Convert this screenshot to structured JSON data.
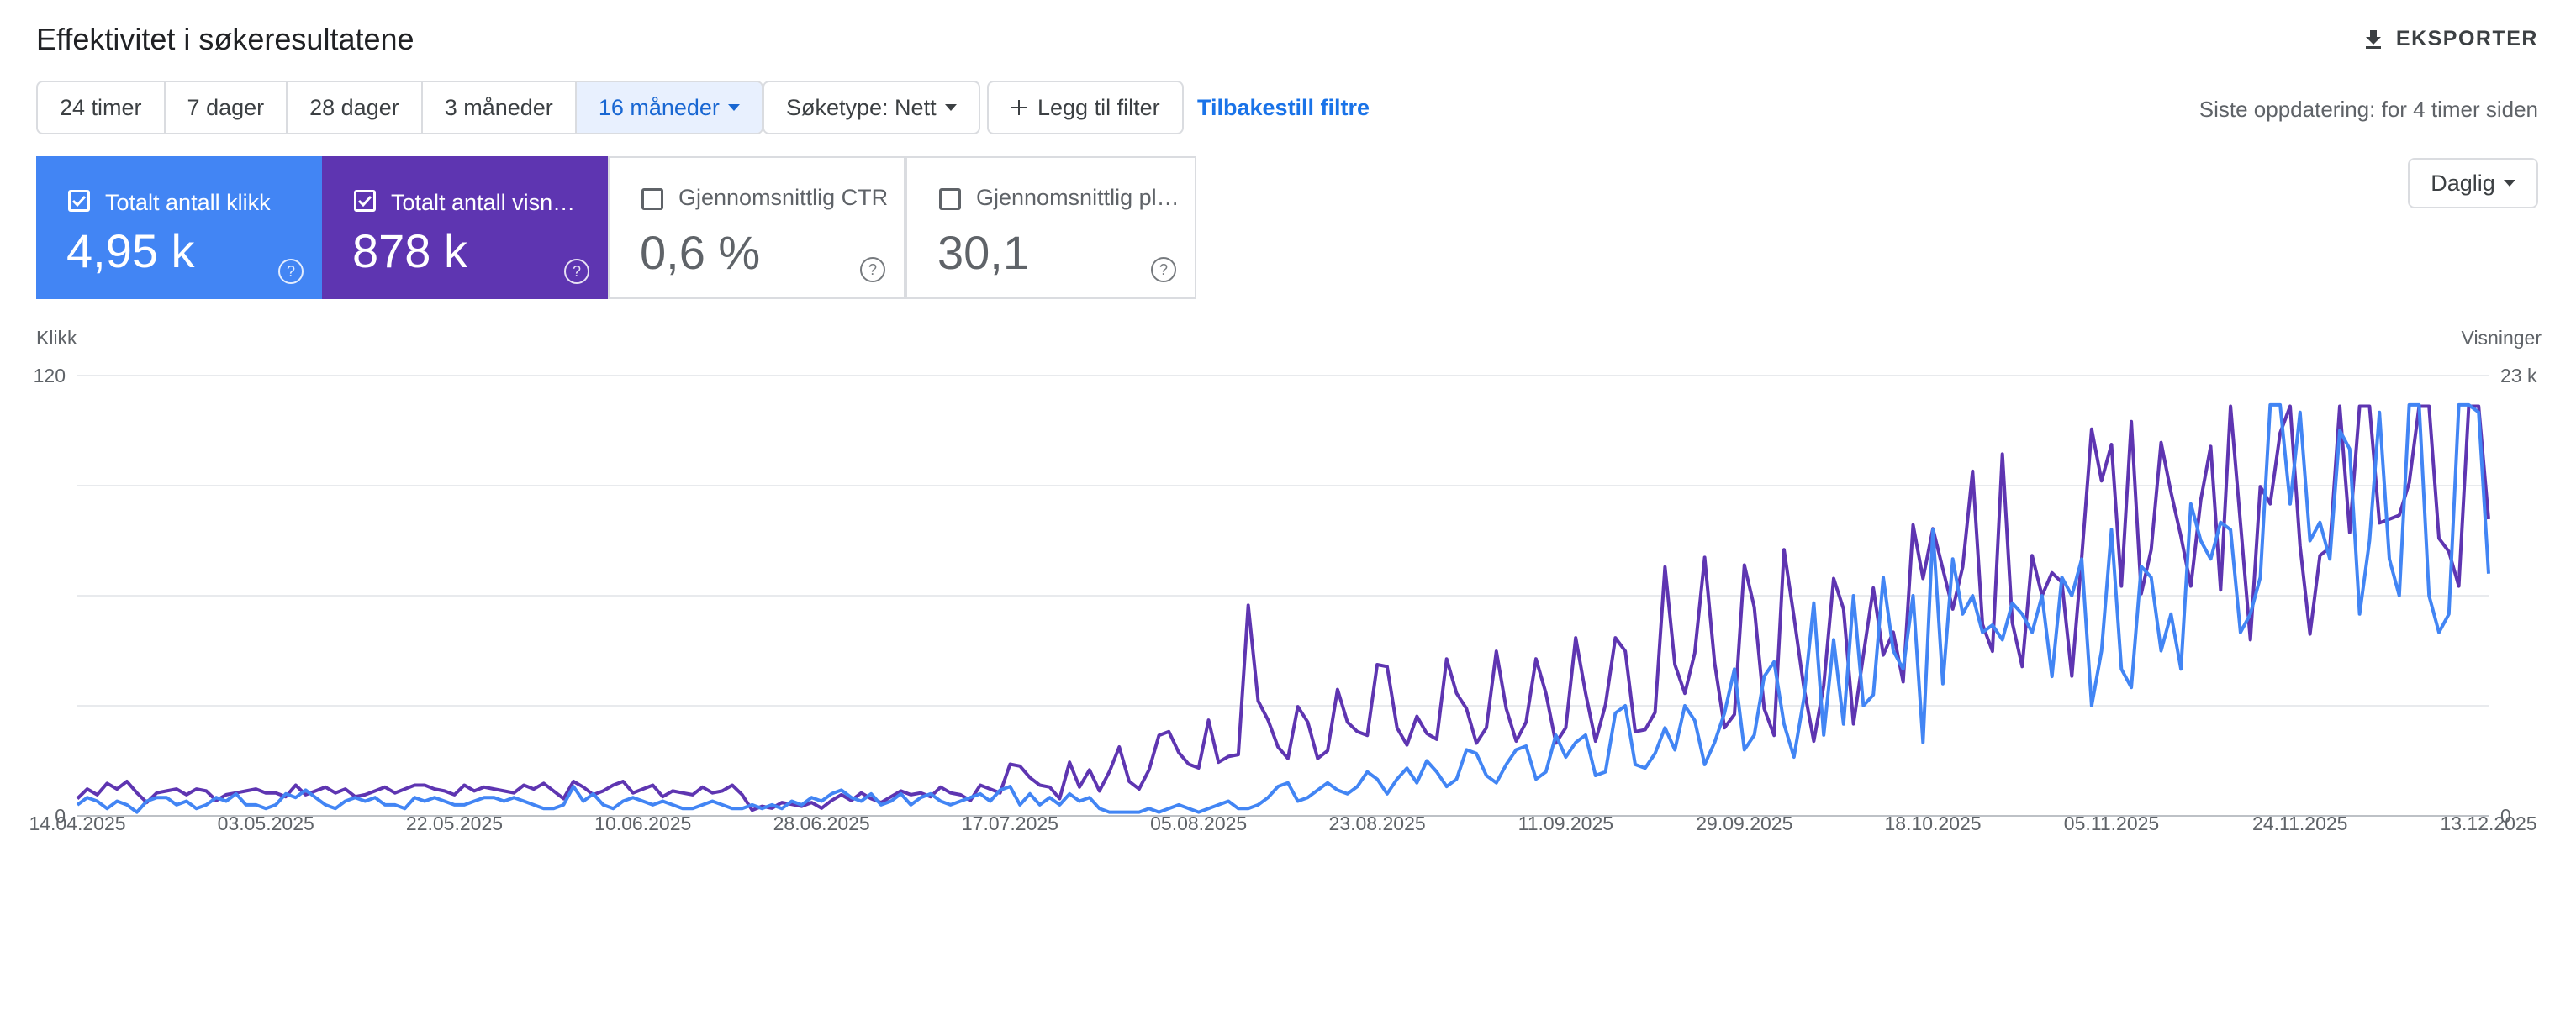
{
  "header": {
    "title": "Effektivitet i søkeresultatene",
    "export": "EKSPORTER"
  },
  "filters": {
    "periods": [
      "24 timer",
      "7 dager",
      "28 dager",
      "3 måneder",
      "16 måneder"
    ],
    "selected": 4,
    "search_type": "Søketype: Nett",
    "add_filter": "Legg til filter",
    "reset": "Tilbakestill filtre",
    "last_update": "Siste oppdatering: for 4 timer siden"
  },
  "cards": [
    {
      "label": "Totalt antall klikk",
      "value": "4,95 k",
      "checked": true,
      "color": "#4285f4"
    },
    {
      "label": "Totalt antall visn…",
      "value": "878 k",
      "checked": true,
      "color": "#5e35b1"
    },
    {
      "label": "Gjennomsnittlig CTR",
      "value": "0,6 %",
      "checked": false,
      "color": "#00897b"
    },
    {
      "label": "Gjennomsnittlig pl…",
      "value": "30,1",
      "checked": false,
      "color": "#e8710a"
    }
  ],
  "granularity": "Daglig",
  "chart_data": {
    "type": "line",
    "ylabel": "Klikk",
    "y2label": "Visninger",
    "grid": true,
    "ylim": [
      0,
      120
    ],
    "yticks": [
      0,
      {
        "value": 30,
        "label": null
      },
      {
        "value": 60,
        "label": null
      },
      {
        "value": 90,
        "label": null
      },
      120
    ],
    "y2lim": [
      0,
      23000
    ],
    "y2ticks": [
      0,
      {
        "value": 23000,
        "label": "23 k"
      }
    ],
    "categories": [
      "14.04.2025",
      null,
      null,
      null,
      null,
      null,
      null,
      null,
      null,
      null,
      null,
      null,
      null,
      null,
      null,
      null,
      null,
      null,
      null,
      "03.05.2025",
      null,
      null,
      null,
      null,
      null,
      null,
      null,
      null,
      null,
      null,
      null,
      null,
      null,
      null,
      null,
      null,
      null,
      null,
      "22.05.2025",
      null,
      null,
      null,
      null,
      null,
      null,
      null,
      null,
      null,
      null,
      null,
      null,
      null,
      null,
      null,
      null,
      null,
      null,
      "10.06.2025",
      null,
      null,
      null,
      null,
      null,
      null,
      null,
      null,
      null,
      null,
      null,
      null,
      null,
      null,
      null,
      null,
      null,
      "28.06.2025",
      null,
      null,
      null,
      null,
      null,
      null,
      null,
      null,
      null,
      null,
      null,
      null,
      null,
      null,
      null,
      null,
      null,
      null,
      "17.07.2025",
      null,
      null,
      null,
      null,
      null,
      null,
      null,
      null,
      null,
      null,
      null,
      null,
      null,
      null,
      null,
      null,
      null,
      null,
      "05.08.2025",
      null,
      null,
      null,
      null,
      null,
      null,
      null,
      null,
      null,
      null,
      null,
      null,
      null,
      null,
      null,
      null,
      null,
      "23.08.2025",
      null,
      null,
      null,
      null,
      null,
      null,
      null,
      null,
      null,
      null,
      null,
      null,
      null,
      null,
      null,
      null,
      null,
      null,
      "11.09.2025",
      null,
      null,
      null,
      null,
      null,
      null,
      null,
      null,
      null,
      null,
      null,
      null,
      null,
      null,
      null,
      null,
      null,
      "29.09.2025",
      null,
      null,
      null,
      null,
      null,
      null,
      null,
      null,
      null,
      null,
      null,
      null,
      null,
      null,
      null,
      null,
      null,
      null,
      "18.10.2025",
      null,
      null,
      null,
      null,
      null,
      null,
      null,
      null,
      null,
      null,
      null,
      null,
      null,
      null,
      null,
      null,
      null,
      "05.11.2025",
      null,
      null,
      null,
      null,
      null,
      null,
      null,
      null,
      null,
      null,
      null,
      null,
      null,
      null,
      null,
      null,
      null,
      null,
      "24.11.2025",
      null,
      null,
      null,
      null,
      null,
      null,
      null,
      null,
      null,
      null,
      null,
      null,
      null,
      null,
      null,
      null,
      null,
      null,
      "13.12.2025"
    ],
    "series": [
      {
        "name": "Klikk",
        "color": "#4285f4",
        "values": [
          3,
          5,
          4,
          2,
          4,
          3,
          1,
          4,
          5,
          5,
          3,
          4,
          2,
          3,
          5,
          4,
          6,
          3,
          3,
          2,
          3,
          6,
          5,
          7,
          5,
          3,
          2,
          4,
          5,
          4,
          5,
          3,
          3,
          2,
          5,
          4,
          5,
          4,
          3,
          3,
          4,
          5,
          5,
          4,
          5,
          4,
          3,
          2,
          2,
          3,
          8,
          4,
          6,
          3,
          2,
          4,
          5,
          4,
          3,
          4,
          3,
          2,
          2,
          3,
          4,
          3,
          2,
          2,
          3,
          2,
          3,
          2,
          4,
          3,
          5,
          4,
          6,
          7,
          5,
          4,
          6,
          3,
          4,
          6,
          3,
          5,
          6,
          4,
          3,
          4,
          5,
          6,
          4,
          7,
          8,
          3,
          6,
          3,
          5,
          3,
          6,
          4,
          5,
          2,
          1,
          1,
          1,
          1,
          2,
          1,
          2,
          3,
          2,
          1,
          2,
          3,
          4,
          2,
          2,
          3,
          5,
          8,
          9,
          4,
          5,
          7,
          9,
          7,
          6,
          8,
          12,
          10,
          6,
          10,
          13,
          9,
          15,
          12,
          8,
          10,
          18,
          17,
          11,
          9,
          14,
          18,
          19,
          10,
          12,
          22,
          16,
          20,
          22,
          11,
          12,
          28,
          30,
          14,
          13,
          17,
          24,
          18,
          30,
          26,
          14,
          20,
          28,
          40,
          18,
          22,
          38,
          42,
          25,
          16,
          32,
          58,
          22,
          48,
          25,
          60,
          30,
          33,
          65,
          45,
          40,
          60,
          20,
          78,
          36,
          70,
          55,
          60,
          50,
          52,
          48,
          58,
          55,
          50,
          60,
          38,
          65,
          60,
          70,
          30,
          45,
          78,
          40,
          35,
          68,
          65,
          45,
          55,
          40,
          85,
          75,
          70,
          80,
          78,
          50,
          55,
          65,
          112,
          112,
          85,
          110,
          75,
          80,
          70,
          105,
          100,
          55,
          75,
          110,
          70,
          60,
          112,
          112,
          60,
          50,
          55,
          112,
          112,
          110,
          66
        ]
      },
      {
        "name": "Visninger",
        "color": "#5e35b1",
        "axis": "y2",
        "values": [
          900,
          1400,
          1100,
          1700,
          1400,
          1800,
          1200,
          700,
          1200,
          1300,
          1400,
          1100,
          1400,
          1300,
          800,
          1100,
          1200,
          1300,
          1400,
          1200,
          1200,
          1000,
          1600,
          1100,
          1300,
          1500,
          1200,
          1400,
          1000,
          1100,
          1300,
          1500,
          1200,
          1400,
          1600,
          1600,
          1400,
          1300,
          1100,
          1600,
          1300,
          1500,
          1400,
          1300,
          1200,
          1600,
          1400,
          1700,
          1300,
          900,
          1800,
          1500,
          1100,
          1300,
          1600,
          1800,
          1200,
          1400,
          1600,
          1000,
          1300,
          1200,
          1100,
          1500,
          1200,
          1300,
          1600,
          1100,
          300,
          500,
          400,
          700,
          600,
          500,
          700,
          400,
          800,
          1100,
          800,
          1200,
          900,
          700,
          1000,
          1300,
          1100,
          1200,
          1000,
          1500,
          1200,
          1100,
          800,
          1600,
          1400,
          1200,
          2700,
          2600,
          2000,
          1600,
          1500,
          900,
          2800,
          1500,
          2400,
          1300,
          2300,
          3600,
          1800,
          1400,
          2400,
          4200,
          4400,
          3300,
          2700,
          2500,
          5000,
          2800,
          3100,
          3200,
          11000,
          6000,
          5000,
          3600,
          3000,
          5700,
          4900,
          3000,
          3400,
          6600,
          4900,
          4400,
          4200,
          7900,
          7800,
          4600,
          3700,
          5200,
          4300,
          4000,
          8200,
          6400,
          5600,
          3800,
          4600,
          8600,
          5600,
          3900,
          4900,
          8200,
          6400,
          3800,
          4600,
          9300,
          6400,
          3900,
          5800,
          9300,
          8600,
          4400,
          4500,
          5400,
          13000,
          7900,
          6400,
          8500,
          13500,
          8000,
          4600,
          5300,
          13100,
          10900,
          5600,
          4200,
          13900,
          10400,
          6700,
          3900,
          6800,
          12400,
          10800,
          4800,
          8400,
          11900,
          8400,
          9600,
          7000,
          15200,
          12400,
          15000,
          12900,
          10800,
          13000,
          18000,
          10000,
          8600,
          18900,
          10100,
          7800,
          13600,
          11500,
          12700,
          12200,
          7300,
          13500,
          20200,
          17500,
          19400,
          12000,
          20600,
          11600,
          13900,
          19500,
          16900,
          14600,
          12000,
          16500,
          19300,
          11800,
          21400,
          15300,
          9200,
          17200,
          16300,
          20000,
          21400,
          14100,
          9500,
          13600,
          14000,
          21400,
          14800,
          21400,
          21400,
          15300,
          15500,
          15700,
          17400,
          21400,
          21400,
          14500,
          13800,
          12000,
          21400,
          21400,
          15500
        ]
      }
    ]
  }
}
